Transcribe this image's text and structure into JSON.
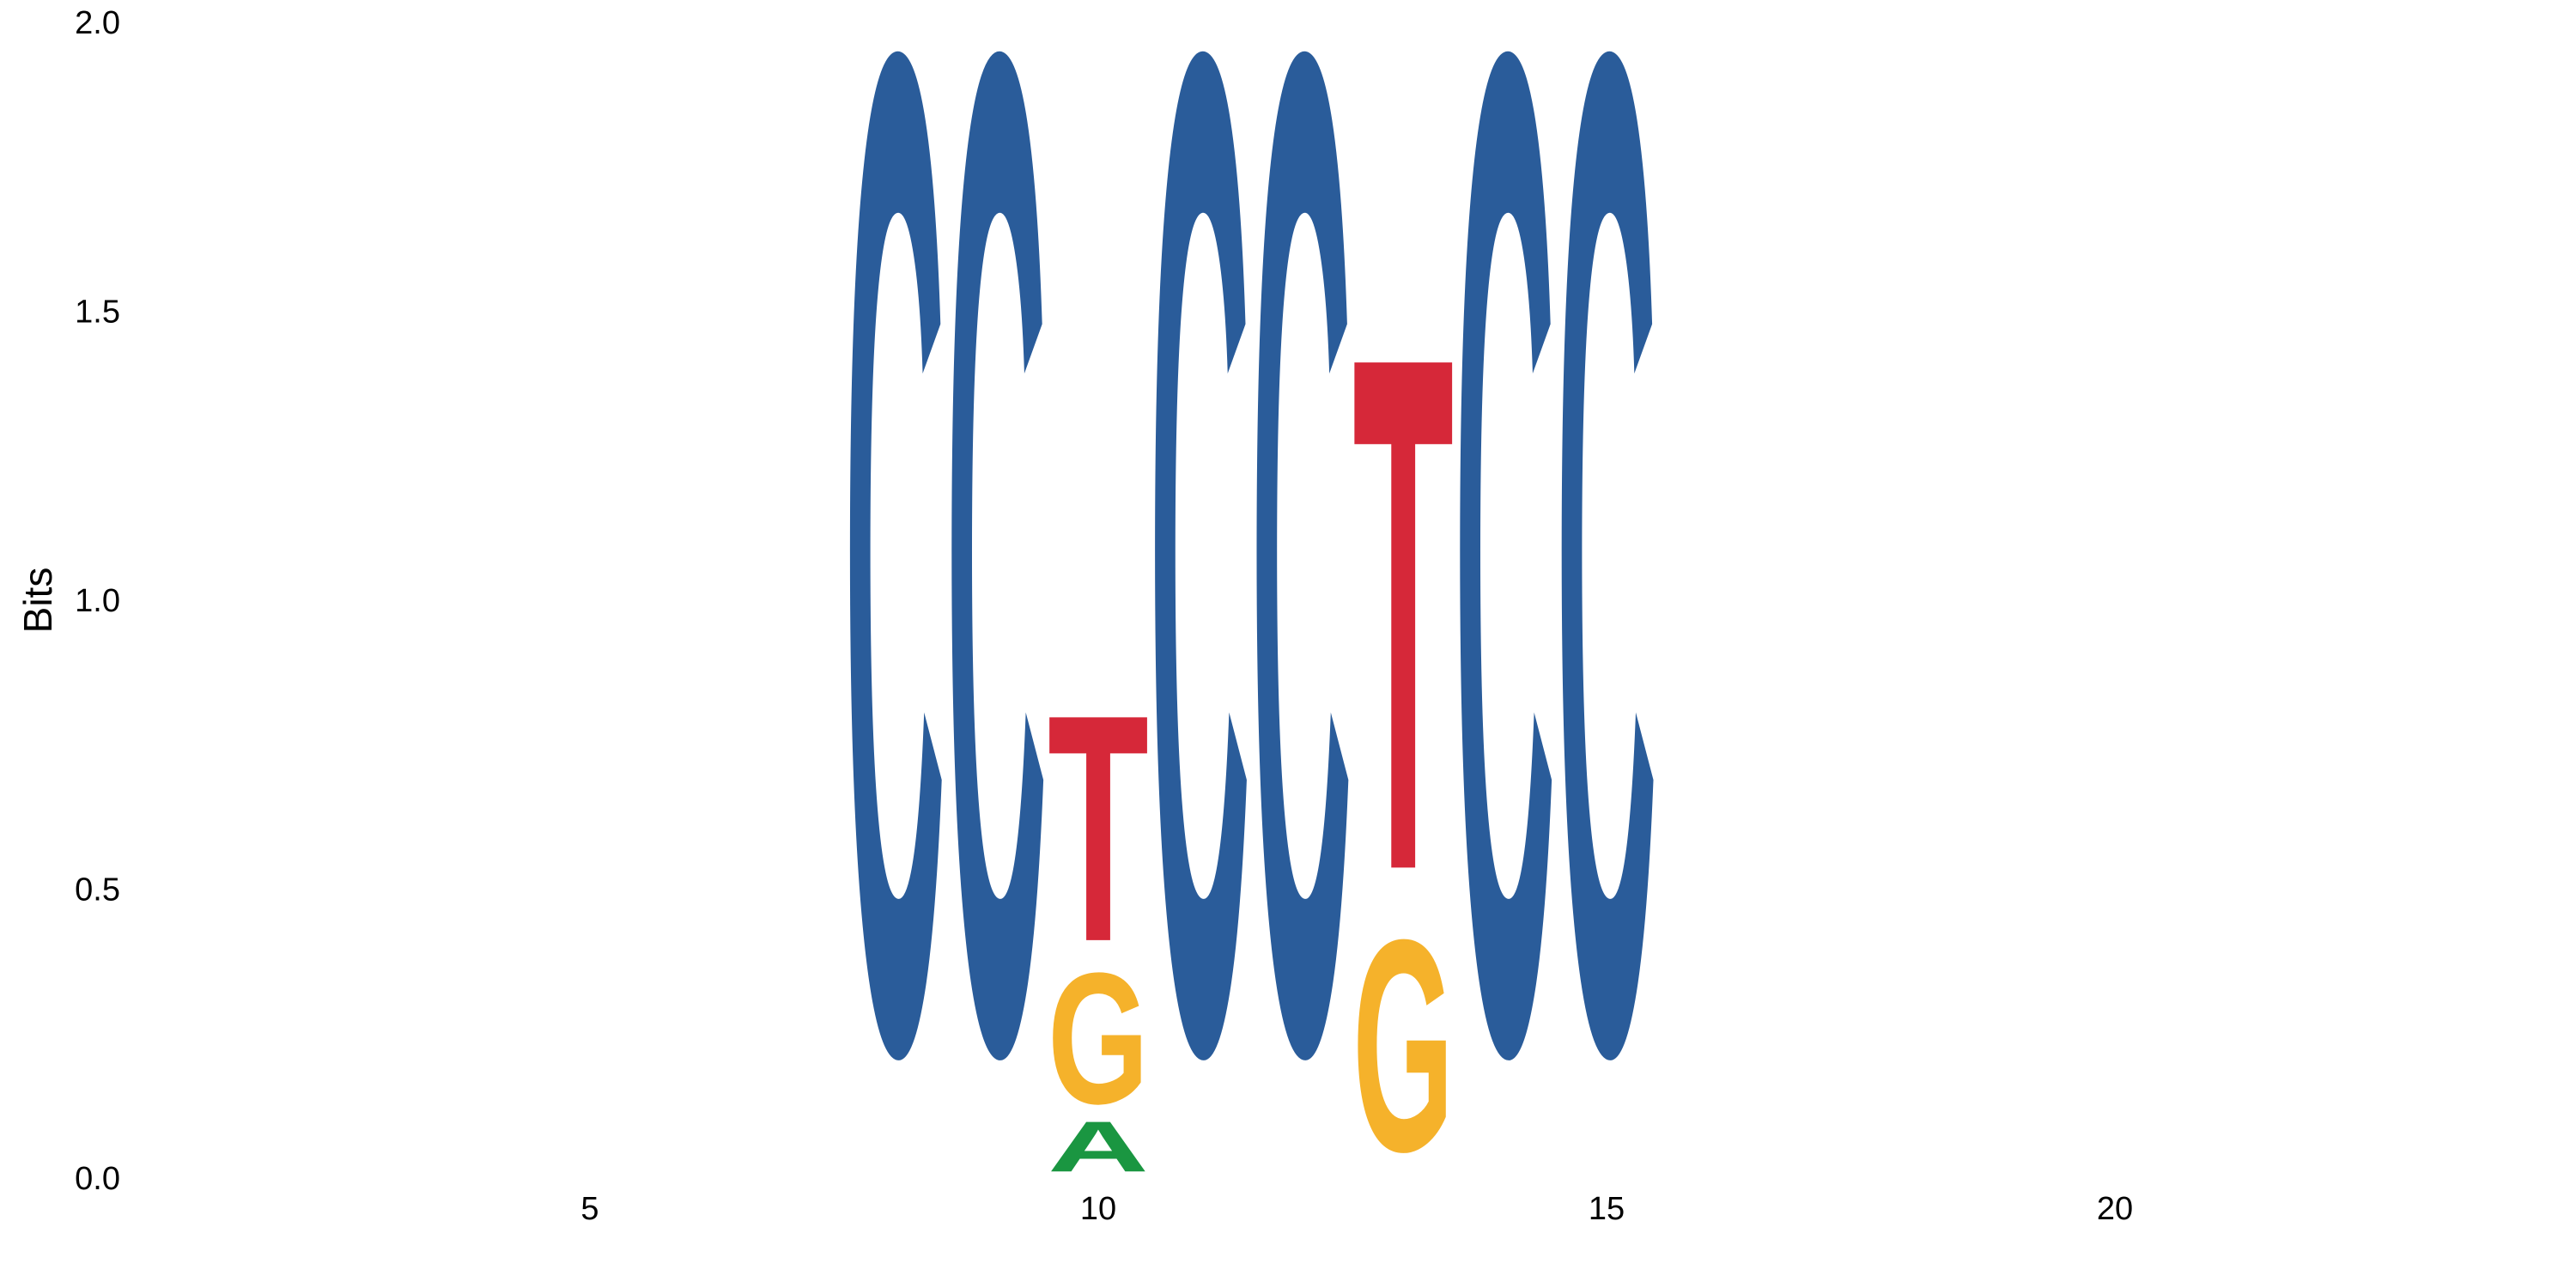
{
  "chart_data": {
    "type": "sequence-logo",
    "ylabel": "Bits",
    "ylim": [
      0,
      2
    ],
    "xlim": [
      1,
      25
    ],
    "y_ticks": [
      "0.0",
      "0.5",
      "1.0",
      "1.5",
      "2.0"
    ],
    "x_ticks": [
      "5",
      "10",
      "15",
      "20"
    ],
    "colors": {
      "A": "#1a9641",
      "C": "#2a5c9a",
      "G": "#f5b22b",
      "T": "#d62839"
    },
    "positions": [
      {
        "pos": 8,
        "letters": [
          {
            "letter": "C",
            "bits": 1.98
          }
        ]
      },
      {
        "pos": 9,
        "letters": [
          {
            "letter": "C",
            "bits": 1.98
          }
        ]
      },
      {
        "pos": 10,
        "letters": [
          {
            "letter": "A",
            "bits": 0.1
          },
          {
            "letter": "G",
            "bits": 0.26
          },
          {
            "letter": "T",
            "bits": 0.45
          }
        ]
      },
      {
        "pos": 11,
        "letters": [
          {
            "letter": "C",
            "bits": 1.98
          }
        ]
      },
      {
        "pos": 12,
        "letters": [
          {
            "letter": "C",
            "bits": 1.98
          }
        ]
      },
      {
        "pos": 13,
        "letters": [
          {
            "letter": "G",
            "bits": 0.42
          },
          {
            "letter": "T",
            "bits": 1.02
          }
        ]
      },
      {
        "pos": 14,
        "letters": [
          {
            "letter": "C",
            "bits": 1.98
          }
        ]
      },
      {
        "pos": 15,
        "letters": [
          {
            "letter": "C",
            "bits": 1.98
          }
        ]
      }
    ]
  }
}
